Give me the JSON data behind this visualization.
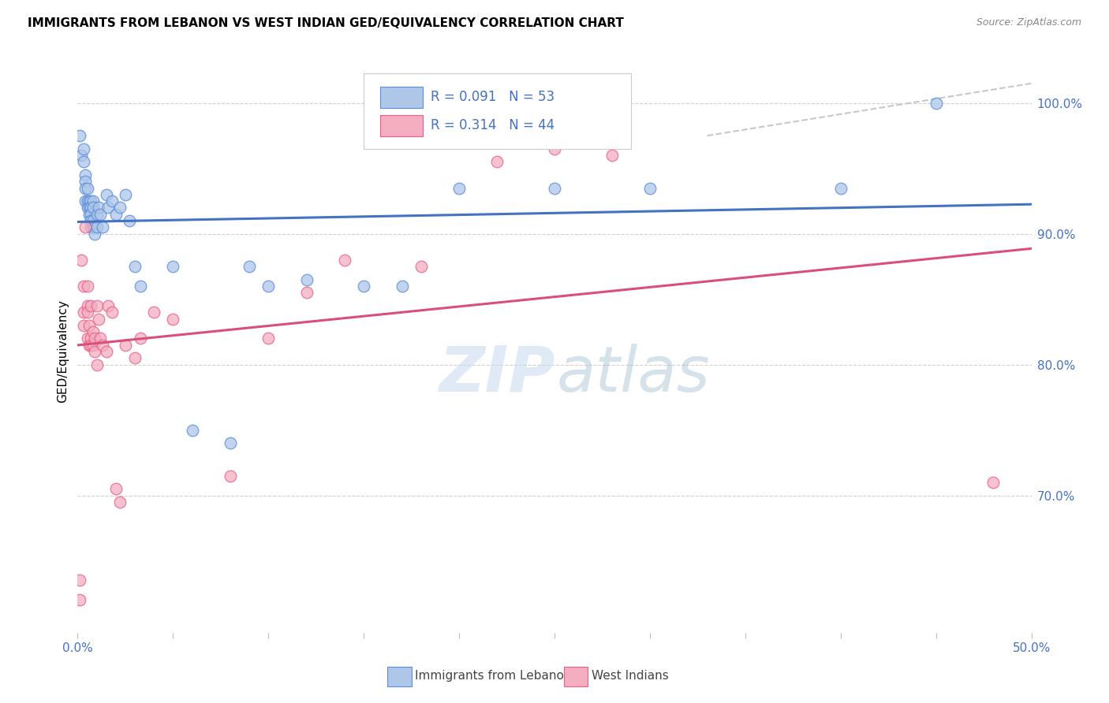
{
  "title": "IMMIGRANTS FROM LEBANON VS WEST INDIAN GED/EQUIVALENCY CORRELATION CHART",
  "source": "Source: ZipAtlas.com",
  "ylabel": "GED/Equivalency",
  "ytick_labels": [
    "100.0%",
    "90.0%",
    "80.0%",
    "70.0%"
  ],
  "ytick_values": [
    1.0,
    0.9,
    0.8,
    0.7
  ],
  "xlim": [
    0.0,
    0.5
  ],
  "ylim": [
    0.595,
    1.025
  ],
  "legend_label_blue": "Immigrants from Lebanon",
  "legend_label_pink": "West Indians",
  "blue_color": "#aec6e8",
  "pink_color": "#f4aec0",
  "blue_edge_color": "#5b8dd9",
  "pink_edge_color": "#e8608a",
  "blue_line_color": "#4472c4",
  "pink_line_color": "#d94f7a",
  "dashed_line_color": "#c8c8c8",
  "grid_color": "#d0d0d0",
  "blue_x": [
    0.001,
    0.002,
    0.003,
    0.003,
    0.004,
    0.004,
    0.004,
    0.004,
    0.005,
    0.005,
    0.005,
    0.006,
    0.006,
    0.006,
    0.007,
    0.007,
    0.007,
    0.007,
    0.007,
    0.007,
    0.008,
    0.008,
    0.008,
    0.008,
    0.009,
    0.009,
    0.01,
    0.01,
    0.011,
    0.012,
    0.013,
    0.015,
    0.016,
    0.018,
    0.02,
    0.022,
    0.025,
    0.027,
    0.03,
    0.033,
    0.05,
    0.06,
    0.08,
    0.09,
    0.1,
    0.12,
    0.15,
    0.17,
    0.2,
    0.25,
    0.3,
    0.4,
    0.45
  ],
  "blue_y": [
    0.975,
    0.96,
    0.965,
    0.955,
    0.945,
    0.94,
    0.935,
    0.925,
    0.935,
    0.925,
    0.92,
    0.925,
    0.92,
    0.915,
    0.925,
    0.92,
    0.915,
    0.91,
    0.91,
    0.905,
    0.925,
    0.92,
    0.91,
    0.905,
    0.905,
    0.9,
    0.915,
    0.905,
    0.92,
    0.915,
    0.905,
    0.93,
    0.92,
    0.925,
    0.915,
    0.92,
    0.93,
    0.91,
    0.875,
    0.86,
    0.875,
    0.75,
    0.74,
    0.875,
    0.86,
    0.865,
    0.86,
    0.86,
    0.935,
    0.935,
    0.935,
    0.935,
    1.0
  ],
  "pink_x": [
    0.001,
    0.001,
    0.002,
    0.003,
    0.003,
    0.003,
    0.004,
    0.005,
    0.005,
    0.005,
    0.005,
    0.006,
    0.006,
    0.007,
    0.007,
    0.007,
    0.008,
    0.008,
    0.009,
    0.009,
    0.01,
    0.01,
    0.011,
    0.012,
    0.013,
    0.015,
    0.016,
    0.018,
    0.02,
    0.022,
    0.025,
    0.03,
    0.033,
    0.04,
    0.05,
    0.08,
    0.1,
    0.12,
    0.14,
    0.18,
    0.22,
    0.25,
    0.28,
    0.48
  ],
  "pink_y": [
    0.62,
    0.635,
    0.88,
    0.86,
    0.84,
    0.83,
    0.905,
    0.86,
    0.845,
    0.84,
    0.82,
    0.83,
    0.815,
    0.845,
    0.82,
    0.815,
    0.825,
    0.815,
    0.82,
    0.81,
    0.845,
    0.8,
    0.835,
    0.82,
    0.815,
    0.81,
    0.845,
    0.84,
    0.705,
    0.695,
    0.815,
    0.805,
    0.82,
    0.84,
    0.835,
    0.715,
    0.82,
    0.855,
    0.88,
    0.875,
    0.955,
    0.965,
    0.96,
    0.71
  ],
  "watermark_zip_color": "#c5daf0",
  "watermark_atlas_color": "#9ab8cc"
}
